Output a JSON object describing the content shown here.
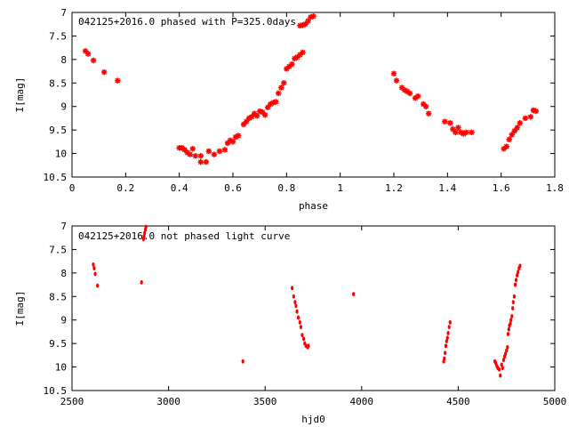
{
  "chart_data": [
    {
      "type": "scatter",
      "title": "042125+2016.0 phased with P=325.0days",
      "xlabel": "phase",
      "ylabel": "I[mag]",
      "xlim": [
        0,
        1.8
      ],
      "ylim": [
        10.5,
        7
      ],
      "y_inverted": true,
      "x_ticks": [
        "0",
        "0.2",
        "0.4",
        "0.6",
        "0.8",
        "1",
        "1.2",
        "1.4",
        "1.6",
        "1.8"
      ],
      "y_ticks": [
        "7",
        "7.5",
        "8",
        "8.5",
        "9",
        "9.5",
        "10",
        "10.5"
      ],
      "grid": false,
      "marker": "plus-cross",
      "color": "#ff0000",
      "points": [
        [
          0.05,
          7.82
        ],
        [
          0.06,
          7.88
        ],
        [
          0.08,
          8.02
        ],
        [
          0.12,
          8.27
        ],
        [
          0.17,
          8.45
        ],
        [
          0.4,
          9.88
        ],
        [
          0.41,
          9.88
        ],
        [
          0.42,
          9.92
        ],
        [
          0.43,
          9.98
        ],
        [
          0.44,
          10.02
        ],
        [
          0.45,
          9.9
        ],
        [
          0.46,
          10.05
        ],
        [
          0.48,
          10.05
        ],
        [
          0.48,
          10.18
        ],
        [
          0.5,
          10.18
        ],
        [
          0.51,
          9.95
        ],
        [
          0.53,
          10.02
        ],
        [
          0.55,
          9.95
        ],
        [
          0.57,
          9.92
        ],
        [
          0.58,
          9.78
        ],
        [
          0.59,
          9.72
        ],
        [
          0.6,
          9.75
        ],
        [
          0.61,
          9.65
        ],
        [
          0.62,
          9.62
        ],
        [
          0.64,
          9.38
        ],
        [
          0.65,
          9.32
        ],
        [
          0.66,
          9.25
        ],
        [
          0.67,
          9.22
        ],
        [
          0.68,
          9.15
        ],
        [
          0.69,
          9.2
        ],
        [
          0.7,
          9.1
        ],
        [
          0.71,
          9.12
        ],
        [
          0.72,
          9.18
        ],
        [
          0.73,
          9.02
        ],
        [
          0.74,
          8.95
        ],
        [
          0.75,
          8.92
        ],
        [
          0.76,
          8.9
        ],
        [
          0.77,
          8.72
        ],
        [
          0.78,
          8.6
        ],
        [
          0.79,
          8.5
        ],
        [
          0.8,
          8.2
        ],
        [
          0.81,
          8.15
        ],
        [
          0.82,
          8.1
        ],
        [
          0.83,
          7.98
        ],
        [
          0.84,
          7.95
        ],
        [
          0.85,
          7.9
        ],
        [
          0.86,
          7.85
        ],
        [
          0.85,
          7.28
        ],
        [
          0.86,
          7.27
        ],
        [
          0.87,
          7.25
        ],
        [
          0.88,
          7.18
        ],
        [
          0.89,
          7.1
        ],
        [
          0.9,
          7.08
        ],
        [
          1.2,
          8.3
        ],
        [
          1.21,
          8.45
        ],
        [
          1.23,
          8.6
        ],
        [
          1.24,
          8.65
        ],
        [
          1.25,
          8.68
        ],
        [
          1.26,
          8.72
        ],
        [
          1.28,
          8.82
        ],
        [
          1.29,
          8.78
        ],
        [
          1.31,
          8.95
        ],
        [
          1.32,
          9.0
        ],
        [
          1.33,
          9.15
        ],
        [
          1.39,
          9.32
        ],
        [
          1.41,
          9.35
        ],
        [
          1.42,
          9.48
        ],
        [
          1.43,
          9.55
        ],
        [
          1.44,
          9.45
        ],
        [
          1.45,
          9.55
        ],
        [
          1.46,
          9.58
        ],
        [
          1.47,
          9.55
        ],
        [
          1.49,
          9.55
        ],
        [
          1.61,
          9.9
        ],
        [
          1.62,
          9.85
        ],
        [
          1.63,
          9.7
        ],
        [
          1.64,
          9.6
        ],
        [
          1.65,
          9.52
        ],
        [
          1.66,
          9.45
        ],
        [
          1.67,
          9.35
        ],
        [
          1.69,
          9.25
        ],
        [
          1.71,
          9.22
        ],
        [
          1.72,
          9.08
        ],
        [
          1.73,
          9.1
        ]
      ]
    },
    {
      "type": "scatter",
      "title": "042125+2016.0 not phased light curve",
      "xlabel": "hjd0",
      "ylabel": "I[mag]",
      "xlim": [
        2500,
        5000
      ],
      "ylim": [
        10.5,
        7
      ],
      "y_inverted": true,
      "x_ticks": [
        "2500",
        "3000",
        "3500",
        "4000",
        "4500",
        "5000"
      ],
      "y_ticks": [
        "7",
        "7.5",
        "8",
        "8.5",
        "9",
        "9.5",
        "10",
        "10.5"
      ],
      "grid": false,
      "marker": "dot",
      "color": "#ff0000",
      "points": [
        [
          2610,
          7.82
        ],
        [
          2615,
          7.9
        ],
        [
          2620,
          8.02
        ],
        [
          2632,
          8.27
        ],
        [
          2860,
          8.2
        ],
        [
          2870,
          7.28
        ],
        [
          2873,
          7.22
        ],
        [
          2876,
          7.15
        ],
        [
          2880,
          7.08
        ],
        [
          2883,
          7.02
        ],
        [
          3385,
          9.88
        ],
        [
          3640,
          8.32
        ],
        [
          3648,
          8.5
        ],
        [
          3655,
          8.62
        ],
        [
          3660,
          8.7
        ],
        [
          3665,
          8.82
        ],
        [
          3672,
          8.95
        ],
        [
          3680,
          9.05
        ],
        [
          3685,
          9.15
        ],
        [
          3692,
          9.32
        ],
        [
          3700,
          9.4
        ],
        [
          3705,
          9.5
        ],
        [
          3712,
          9.55
        ],
        [
          3720,
          9.58
        ],
        [
          3725,
          9.55
        ],
        [
          3958,
          8.45
        ],
        [
          4425,
          9.88
        ],
        [
          4428,
          9.82
        ],
        [
          4432,
          9.7
        ],
        [
          4436,
          9.55
        ],
        [
          4440,
          9.45
        ],
        [
          4444,
          9.38
        ],
        [
          4448,
          9.28
        ],
        [
          4453,
          9.15
        ],
        [
          4458,
          9.05
        ],
        [
          4690,
          9.88
        ],
        [
          4695,
          9.92
        ],
        [
          4700,
          9.98
        ],
        [
          4705,
          10.02
        ],
        [
          4712,
          10.05
        ],
        [
          4718,
          10.18
        ],
        [
          4725,
          9.95
        ],
        [
          4730,
          10.02
        ],
        [
          4735,
          9.85
        ],
        [
          4740,
          9.78
        ],
        [
          4745,
          9.72
        ],
        [
          4750,
          9.65
        ],
        [
          4755,
          9.58
        ],
        [
          4758,
          9.3
        ],
        [
          4762,
          9.2
        ],
        [
          4765,
          9.12
        ],
        [
          4770,
          9.08
        ],
        [
          4773,
          9.0
        ],
        [
          4778,
          8.92
        ],
        [
          4782,
          8.75
        ],
        [
          4785,
          8.62
        ],
        [
          4790,
          8.5
        ],
        [
          4795,
          8.25
        ],
        [
          4800,
          8.15
        ],
        [
          4805,
          8.05
        ],
        [
          4810,
          7.98
        ],
        [
          4815,
          7.9
        ],
        [
          4820,
          7.85
        ]
      ]
    }
  ]
}
